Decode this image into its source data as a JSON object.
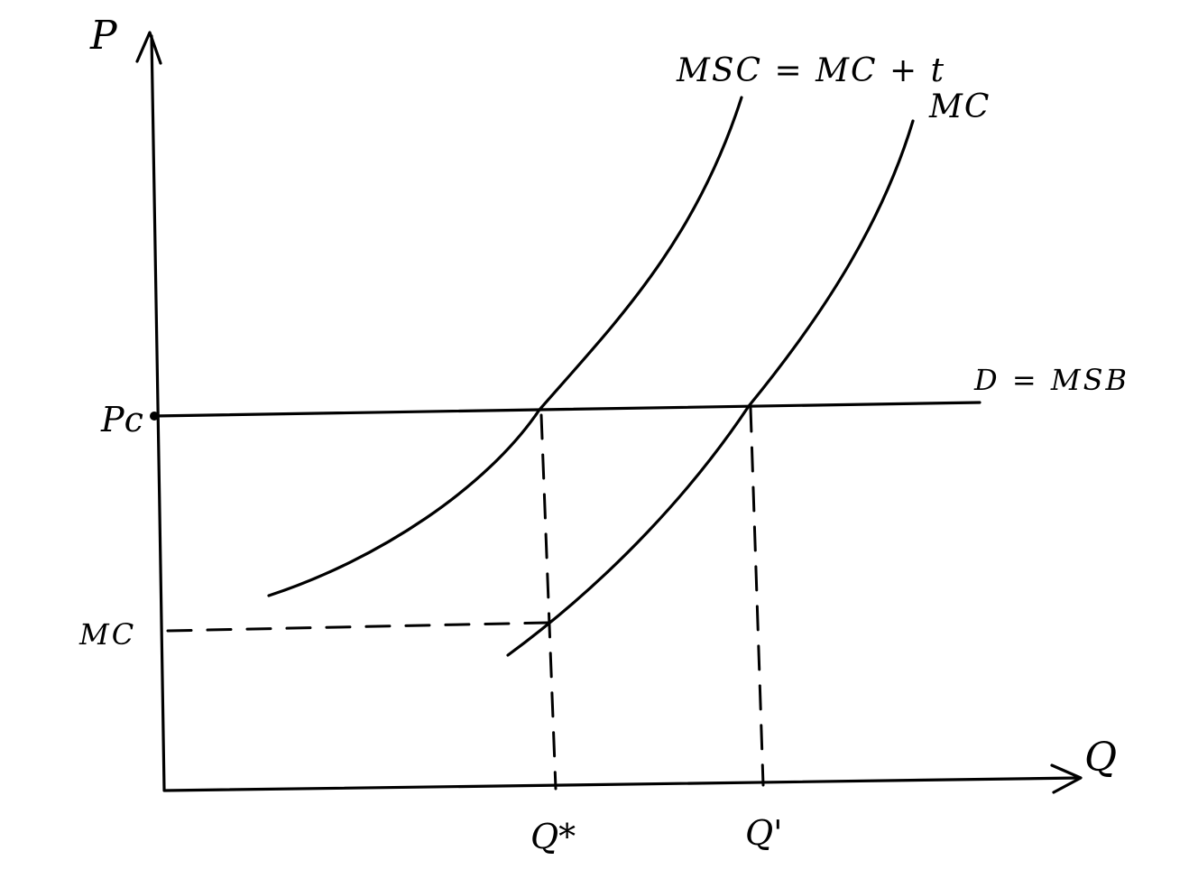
{
  "labels": {
    "y_axis": "P",
    "x_axis": "Q",
    "price_level": "Pc",
    "mc_level": "MC",
    "q_star": "Q*",
    "q_prime": "Q'",
    "msc_curve": "MSC = MC + t",
    "mc_curve": "MC",
    "demand_curve": "D = MSB"
  },
  "colors": {
    "ink": "#000000",
    "background": "#ffffff"
  }
}
